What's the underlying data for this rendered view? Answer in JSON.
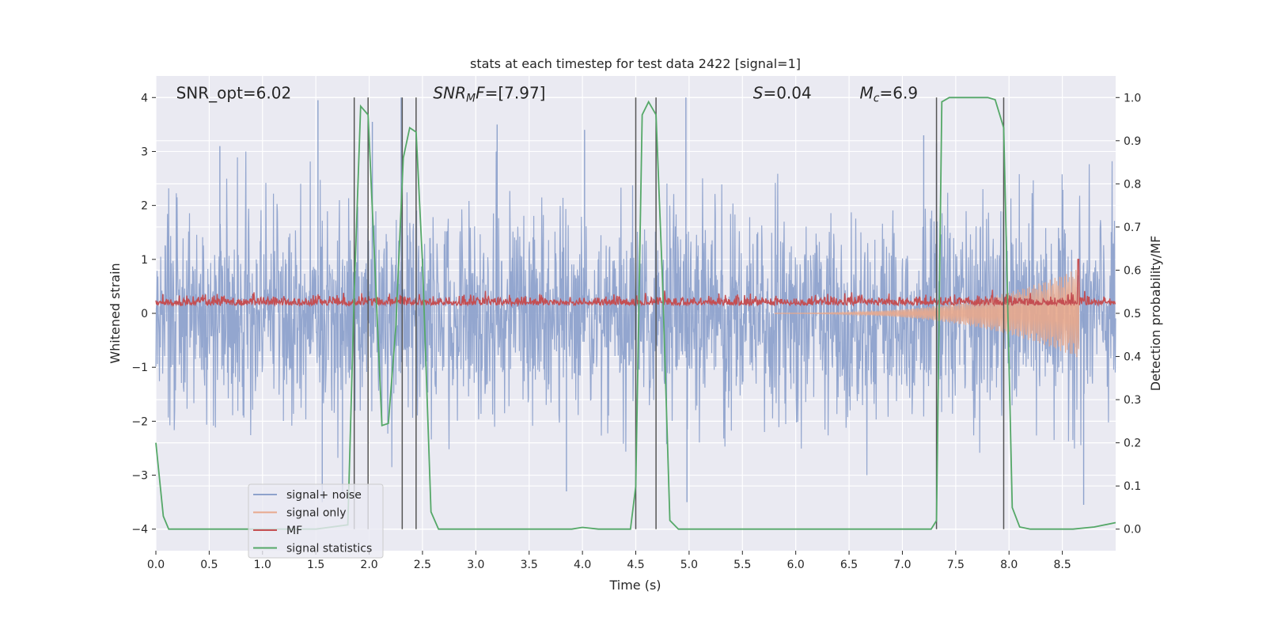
{
  "chart_data": {
    "type": "line",
    "title": "stats at each timestep for test data 2422 [signal=1]",
    "xlabel": "Time (s)",
    "ylabel": "Whitened strain",
    "y2label": "Detection probability/MF",
    "xlim": [
      0,
      9.0
    ],
    "ylim": [
      -4.4,
      4.4
    ],
    "y2lim": [
      -0.05,
      1.05
    ],
    "x_ticks": [
      0.0,
      0.5,
      1.0,
      1.5,
      2.0,
      2.5,
      3.0,
      3.5,
      4.0,
      4.5,
      5.0,
      5.5,
      6.0,
      6.5,
      7.0,
      7.5,
      8.0,
      8.5
    ],
    "x_tick_labels": [
      "0.0",
      "0.5",
      "1.0",
      "1.5",
      "2.0",
      "2.5",
      "3.0",
      "3.5",
      "4.0",
      "4.5",
      "5.0",
      "5.5",
      "6.0",
      "6.5",
      "7.0",
      "7.5",
      "8.0",
      "8.5"
    ],
    "y_ticks": [
      -4,
      -3,
      -2,
      -1,
      0,
      1,
      2,
      3,
      4
    ],
    "y_tick_labels": [
      "−4",
      "−3",
      "−2",
      "−1",
      "0",
      "1",
      "2",
      "3",
      "4"
    ],
    "y2_ticks": [
      0.0,
      0.1,
      0.2,
      0.3,
      0.4,
      0.5,
      0.6,
      0.7,
      0.8,
      0.9,
      1.0
    ],
    "y2_tick_labels": [
      "0.0",
      "0.1",
      "0.2",
      "0.3",
      "0.4",
      "0.5",
      "0.6",
      "0.7",
      "0.8",
      "0.9",
      "1.0"
    ],
    "grid": true,
    "legend_position": "lower-left",
    "annotations": [
      {
        "id": "snr-opt",
        "text": "SNR_opt=6.02",
        "x": 0.19,
        "y": 4.1
      },
      {
        "id": "snr-mf",
        "text": "SNR_MF=[7.97]",
        "x": 2.6,
        "y": 4.1
      },
      {
        "id": "s-value",
        "text": "S=0.04",
        "x": 5.6,
        "y": 4.1
      },
      {
        "id": "mc-value",
        "text": "M_c=6.9",
        "x": 6.6,
        "y": 4.1
      }
    ],
    "vertical_lines": [
      1.86,
      1.99,
      2.31,
      2.44,
      4.5,
      4.69,
      7.32,
      7.95
    ],
    "series": [
      {
        "name": "signal+ noise",
        "color": "#8ea2cc",
        "axis": "left",
        "kind": "noise",
        "amplitude": 1.6,
        "peaks": [
          {
            "x": 1.52,
            "y": 3.95
          },
          {
            "x": 1.56,
            "y": -3.5
          },
          {
            "x": 2.03,
            "y": 3.55
          },
          {
            "x": 3.2,
            "y": 3.5
          },
          {
            "x": 4.02,
            "y": 3.4
          },
          {
            "x": 4.97,
            "y": 4.0
          },
          {
            "x": 4.98,
            "y": -3.5
          },
          {
            "x": 3.85,
            "y": -3.3
          },
          {
            "x": 7.2,
            "y": 3.3
          },
          {
            "x": 8.7,
            "y": -3.55
          },
          {
            "x": 0.6,
            "y": 3.1
          },
          {
            "x": 2.3,
            "y": 4.0
          },
          {
            "x": 7.32,
            "y": 3.15
          },
          {
            "x": 1.75,
            "y": -3.35
          }
        ]
      },
      {
        "name": "signal only",
        "color": "#e8a88c",
        "axis": "left",
        "kind": "chirp",
        "start": 5.8,
        "end": 8.66,
        "peak": 0.8
      },
      {
        "name": "MF",
        "color": "#c44e52",
        "axis": "left",
        "kind": "mf",
        "base": 0.2,
        "spike_x": 8.65,
        "spike_y": 1.0
      },
      {
        "name": "signal statistics",
        "color": "#55a868",
        "axis": "right",
        "kind": "line",
        "x": [
          0.0,
          0.07,
          0.12,
          0.2,
          0.5,
          1.0,
          1.5,
          1.8,
          1.86,
          1.92,
          1.99,
          2.05,
          2.12,
          2.18,
          2.25,
          2.32,
          2.38,
          2.44,
          2.5,
          2.58,
          2.65,
          3.0,
          3.5,
          3.9,
          4.0,
          4.15,
          4.45,
          4.5,
          4.56,
          4.62,
          4.69,
          4.75,
          4.82,
          4.9,
          5.5,
          6.0,
          7.0,
          7.27,
          7.32,
          7.37,
          7.44,
          7.8,
          7.87,
          7.95,
          8.03,
          8.1,
          8.2,
          8.6,
          8.8,
          9.0
        ],
        "y": [
          0.2,
          0.03,
          0.0,
          0.0,
          0.0,
          0.0,
          0.0,
          0.01,
          0.55,
          0.98,
          0.96,
          0.63,
          0.24,
          0.245,
          0.47,
          0.86,
          0.93,
          0.92,
          0.62,
          0.04,
          0.0,
          0.0,
          0.0,
          0.0,
          0.004,
          0.0,
          0.0,
          0.1,
          0.96,
          0.99,
          0.96,
          0.58,
          0.02,
          0.0,
          0.0,
          0.0,
          0.0,
          0.0,
          0.02,
          0.99,
          1.0,
          1.0,
          0.995,
          0.93,
          0.05,
          0.005,
          0.0,
          0.0,
          0.005,
          0.015
        ]
      }
    ]
  }
}
